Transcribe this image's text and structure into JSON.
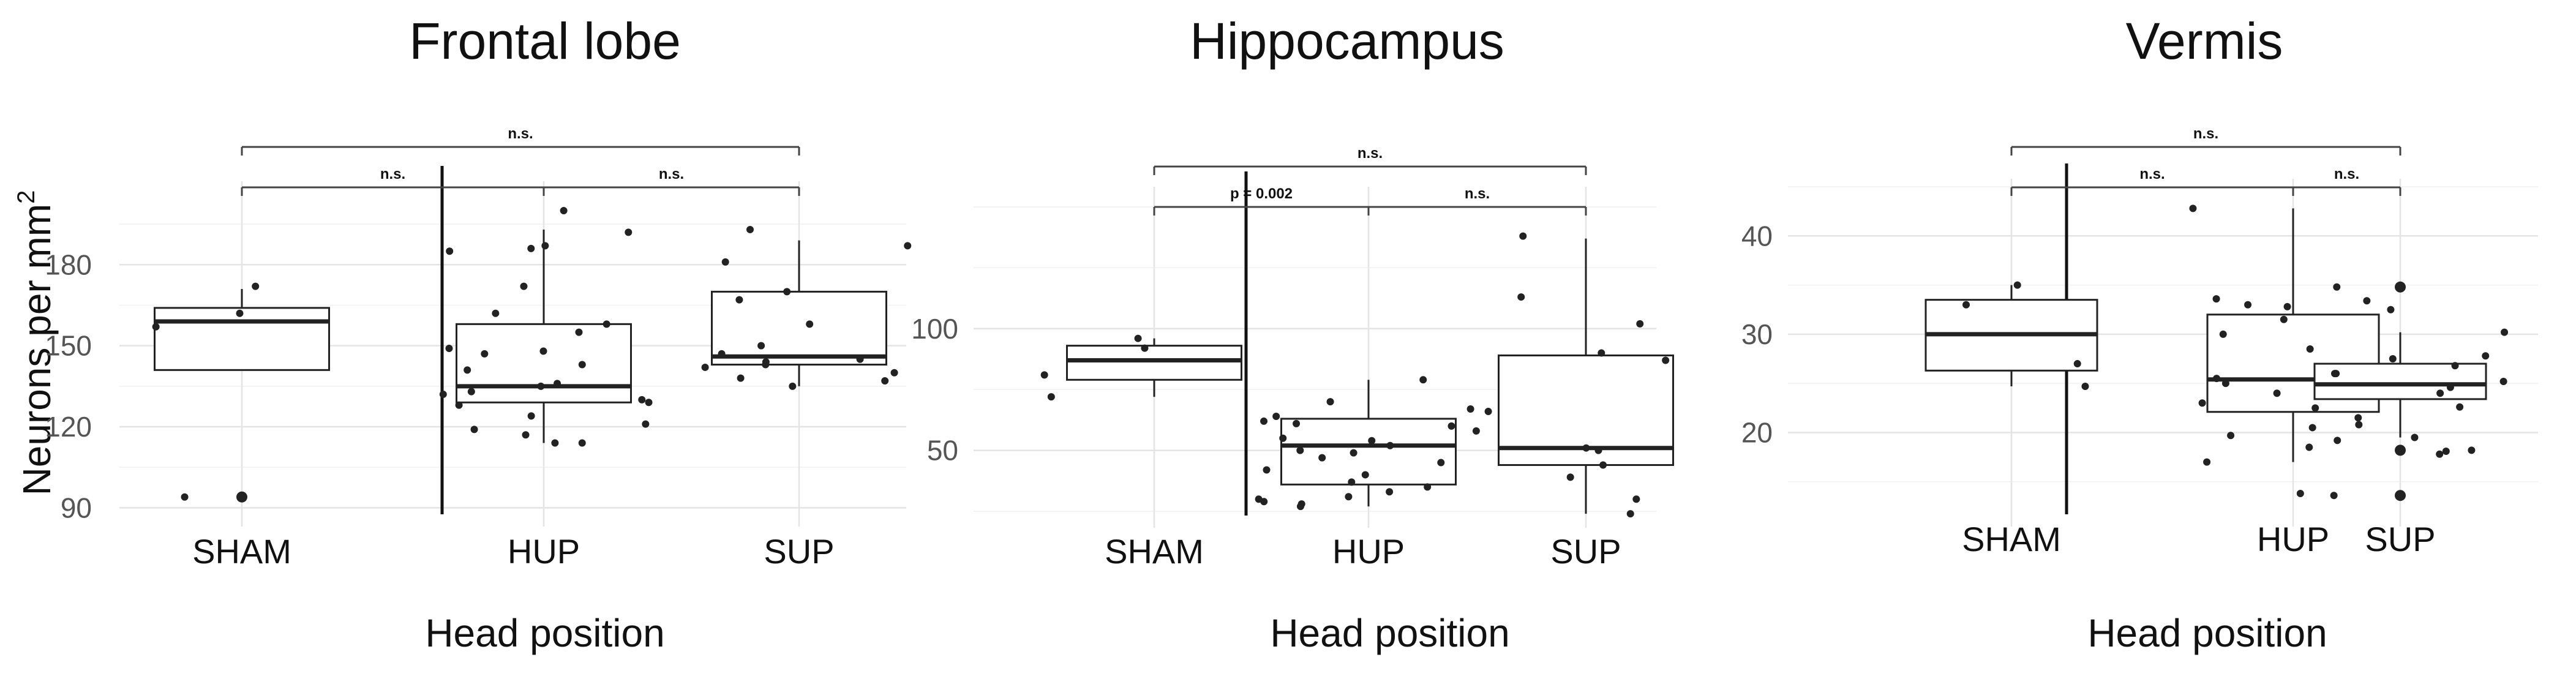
{
  "y_axis_label": "Neurons per mm",
  "y_axis_label_superscript": "2",
  "chart_data": [
    {
      "type": "box",
      "title": "Frontal lobe",
      "xlabel": "Head position",
      "ylabel": "Neurons per mm²",
      "categories": [
        "SHAM",
        "HUP",
        "SUP"
      ],
      "yticks": [
        90,
        120,
        150,
        180
      ],
      "ylim": [
        86,
        205
      ],
      "grid": true,
      "boxes": [
        {
          "category": "SHAM",
          "q1": 141,
          "median": 159,
          "q3": 164,
          "whisker_low": 141,
          "whisker_high": 171,
          "outliers": [
            94
          ]
        },
        {
          "category": "HUP",
          "q1": 129,
          "median": 135,
          "q3": 158,
          "whisker_low": 114,
          "whisker_high": 193,
          "outliers": []
        },
        {
          "category": "SUP",
          "q1": 143,
          "median": 146,
          "q3": 170,
          "whisker_low": 135,
          "whisker_high": 189,
          "outliers": []
        }
      ],
      "points": [
        {
          "category": "SHAM",
          "values": [
            162,
            172,
            157,
            94
          ]
        },
        {
          "category": "HUP",
          "values": [
            186,
            187,
            185,
            192,
            200,
            172,
            162,
            158,
            155,
            149,
            148,
            147,
            143,
            141,
            136,
            135,
            133,
            132,
            130,
            129,
            128,
            124,
            121,
            119,
            117,
            114,
            114
          ]
        },
        {
          "category": "SUP",
          "values": [
            193,
            181,
            187,
            170,
            167,
            158,
            150,
            147,
            145,
            144,
            143,
            142,
            140,
            138,
            137,
            135
          ]
        }
      ],
      "brackets": [
        {
          "from": "SHAM",
          "to": "SUP",
          "label": "n.s.",
          "value": 203
        },
        {
          "from": "SHAM",
          "to": "HUP",
          "label": "n.s.",
          "value": 198
        },
        {
          "from": "HUP",
          "to": "SUP",
          "label": "n.s.",
          "value": 198
        }
      ]
    },
    {
      "type": "box",
      "title": "Hippocampus",
      "xlabel": "Head position",
      "ylabel": "Neurons per mm²",
      "categories": [
        "SHAM",
        "HUP",
        "SUP"
      ],
      "yticks": [
        50,
        100
      ],
      "ylim": [
        20,
        155
      ],
      "grid": true,
      "boxes": [
        {
          "category": "SHAM",
          "q1": 79,
          "median": 87,
          "q3": 93,
          "whisker_low": 72,
          "whisker_high": 96,
          "outliers": []
        },
        {
          "category": "HUP",
          "q1": 36,
          "median": 52,
          "q3": 63,
          "whisker_low": 27,
          "whisker_high": 79,
          "outliers": []
        },
        {
          "category": "SUP",
          "q1": 44,
          "median": 51,
          "q3": 89,
          "whisker_low": 24,
          "whisker_high": 137,
          "outliers": []
        }
      ],
      "points": [
        {
          "category": "SHAM",
          "values": [
            81,
            96,
            92,
            72
          ]
        },
        {
          "category": "HUP",
          "values": [
            79,
            70,
            67,
            64,
            62,
            61,
            60,
            58,
            55,
            54,
            52,
            50,
            49,
            47,
            45,
            42,
            40,
            37,
            35,
            33,
            31,
            30,
            29,
            28,
            27
          ]
        },
        {
          "category": "SUP",
          "values": [
            138,
            113,
            102,
            90,
            87,
            66,
            51,
            50,
            44,
            39,
            30,
            24
          ]
        }
      ],
      "brackets": [
        {
          "from": "SHAM",
          "to": "SUP",
          "label": "n.s.",
          "value": 153
        },
        {
          "from": "SHAM",
          "to": "HUP",
          "label": "p = 0.002",
          "value": 142
        },
        {
          "from": "HUP",
          "to": "SUP",
          "label": "n.s.",
          "value": 142
        }
      ]
    },
    {
      "type": "box",
      "title": "Vermis",
      "xlabel": "Head position",
      "ylabel": "Neurons per mm²",
      "categories": [
        "SHAM",
        "HUP",
        "SUP"
      ],
      "yticks": [
        20,
        30,
        40
      ],
      "ylim": [
        11,
        45
      ],
      "grid": true,
      "boxes": [
        {
          "category": "SHAM",
          "q1": 26.3,
          "median": 30,
          "q3": 33.5,
          "whisker_low": 24.7,
          "whisker_high": 35,
          "outliers": []
        },
        {
          "category": "HUP",
          "q1": 22.1,
          "median": 25.4,
          "q3": 32,
          "whisker_low": 17,
          "whisker_high": 42.8,
          "outliers": []
        },
        {
          "category": "SUP",
          "q1": 23.4,
          "median": 24.9,
          "q3": 27,
          "whisker_low": 19.5,
          "whisker_high": 30.2,
          "outliers": [
            34.8,
            18.2,
            13.6
          ]
        }
      ],
      "points": [
        {
          "category": "SHAM",
          "values": [
            35,
            33,
            27,
            24.7
          ]
        },
        {
          "category": "HUP",
          "values": [
            42.8,
            33.6,
            33.4,
            33,
            32.8,
            32.5,
            31.5,
            30,
            28.5,
            27.5,
            26,
            25.5,
            25,
            24,
            23,
            22.5,
            21.5,
            20.8,
            20.5,
            19.7,
            19.2,
            18.5,
            17
          ]
        },
        {
          "category": "SUP",
          "values": [
            34.8,
            30.2,
            27.8,
            26.8,
            26,
            25.2,
            24.6,
            24,
            22.6,
            19.5,
            18.2,
            18.1,
            17.8,
            13.8,
            13.6
          ]
        }
      ],
      "brackets": [
        {
          "from": "SHAM",
          "to": "SUP",
          "label": "n.s.",
          "value": 44.6
        },
        {
          "from": "SHAM",
          "to": "HUP",
          "label": "n.s.",
          "value": 43.7
        },
        {
          "from": "HUP",
          "to": "SUP",
          "label": "n.s.",
          "value": 43.7
        }
      ]
    }
  ]
}
